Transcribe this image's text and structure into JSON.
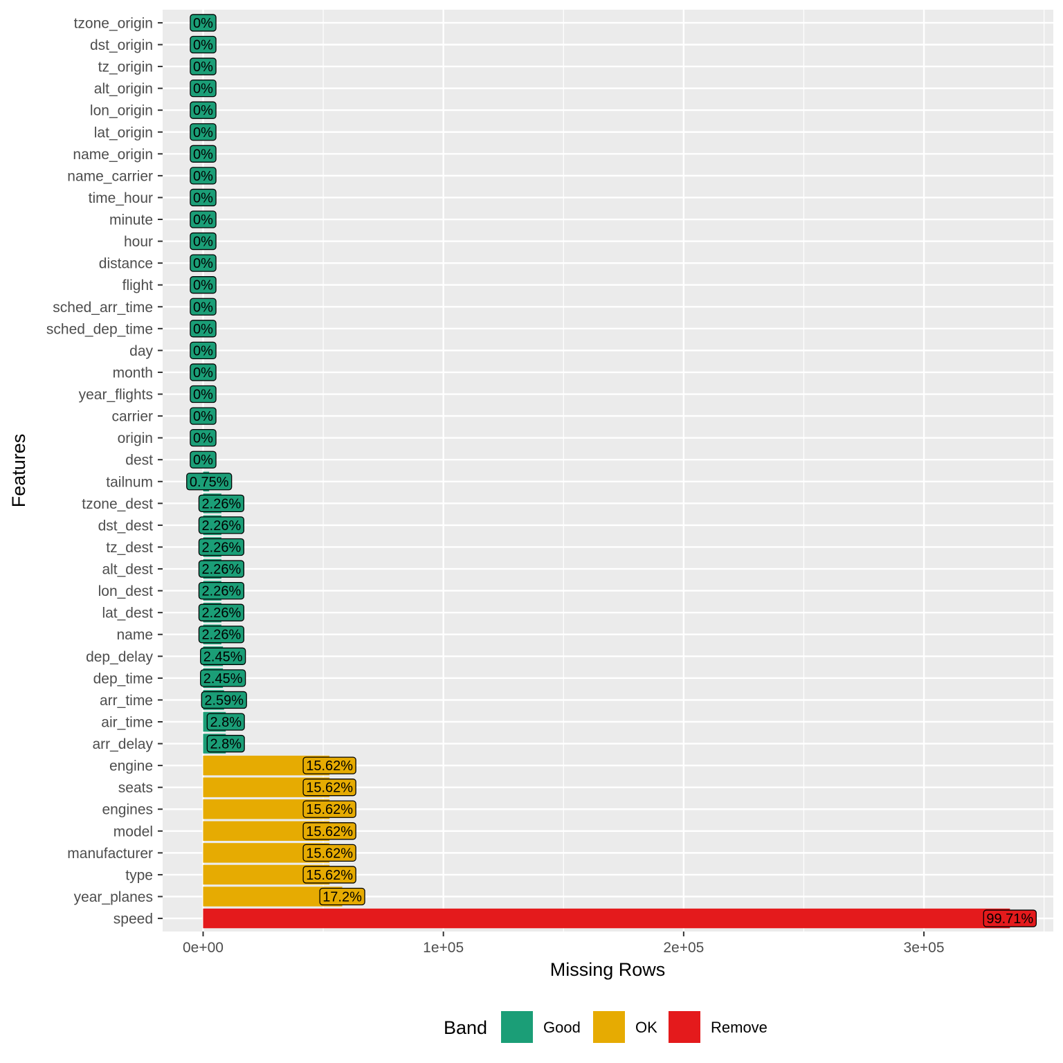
{
  "chart_data": {
    "type": "bar",
    "orientation": "horizontal",
    "xlabel": "Missing Rows",
    "ylabel": "Features",
    "xlim": [
      -16849,
      353850
    ],
    "x_ticks": [
      {
        "value": 0,
        "label": "0e+00"
      },
      {
        "value": 100000,
        "label": "1e+05"
      },
      {
        "value": 200000,
        "label": "2e+05"
      },
      {
        "value": 300000,
        "label": "3e+05"
      }
    ],
    "grid": true,
    "legend": {
      "title": "Band",
      "placement": "bottom",
      "entries": [
        {
          "key": "Good",
          "label": "Good",
          "color": "#1b9e77"
        },
        {
          "key": "OK",
          "label": "OK",
          "color": "#e6ab02"
        },
        {
          "key": "Remove",
          "label": "Remove",
          "color": "#e41a1c"
        }
      ]
    },
    "bars": [
      {
        "feature": "tzone_origin",
        "missing_rows": 0,
        "label": "0%",
        "band": "Good"
      },
      {
        "feature": "dst_origin",
        "missing_rows": 0,
        "label": "0%",
        "band": "Good"
      },
      {
        "feature": "tz_origin",
        "missing_rows": 0,
        "label": "0%",
        "band": "Good"
      },
      {
        "feature": "alt_origin",
        "missing_rows": 0,
        "label": "0%",
        "band": "Good"
      },
      {
        "feature": "lon_origin",
        "missing_rows": 0,
        "label": "0%",
        "band": "Good"
      },
      {
        "feature": "lat_origin",
        "missing_rows": 0,
        "label": "0%",
        "band": "Good"
      },
      {
        "feature": "name_origin",
        "missing_rows": 0,
        "label": "0%",
        "band": "Good"
      },
      {
        "feature": "name_carrier",
        "missing_rows": 0,
        "label": "0%",
        "band": "Good"
      },
      {
        "feature": "time_hour",
        "missing_rows": 0,
        "label": "0%",
        "band": "Good"
      },
      {
        "feature": "minute",
        "missing_rows": 0,
        "label": "0%",
        "band": "Good"
      },
      {
        "feature": "hour",
        "missing_rows": 0,
        "label": "0%",
        "band": "Good"
      },
      {
        "feature": "distance",
        "missing_rows": 0,
        "label": "0%",
        "band": "Good"
      },
      {
        "feature": "flight",
        "missing_rows": 0,
        "label": "0%",
        "band": "Good"
      },
      {
        "feature": "sched_arr_time",
        "missing_rows": 0,
        "label": "0%",
        "band": "Good"
      },
      {
        "feature": "sched_dep_time",
        "missing_rows": 0,
        "label": "0%",
        "band": "Good"
      },
      {
        "feature": "day",
        "missing_rows": 0,
        "label": "0%",
        "band": "Good"
      },
      {
        "feature": "month",
        "missing_rows": 0,
        "label": "0%",
        "band": "Good"
      },
      {
        "feature": "year_flights",
        "missing_rows": 0,
        "label": "0%",
        "band": "Good"
      },
      {
        "feature": "carrier",
        "missing_rows": 0,
        "label": "0%",
        "band": "Good"
      },
      {
        "feature": "origin",
        "missing_rows": 0,
        "label": "0%",
        "band": "Good"
      },
      {
        "feature": "dest",
        "missing_rows": 0,
        "label": "0%",
        "band": "Good"
      },
      {
        "feature": "tailnum",
        "missing_rows": 2512,
        "label": "0.75%",
        "band": "Good"
      },
      {
        "feature": "tzone_dest",
        "missing_rows": 7602,
        "label": "2.26%",
        "band": "Good"
      },
      {
        "feature": "dst_dest",
        "missing_rows": 7602,
        "label": "2.26%",
        "band": "Good"
      },
      {
        "feature": "tz_dest",
        "missing_rows": 7602,
        "label": "2.26%",
        "band": "Good"
      },
      {
        "feature": "alt_dest",
        "missing_rows": 7602,
        "label": "2.26%",
        "band": "Good"
      },
      {
        "feature": "lon_dest",
        "missing_rows": 7602,
        "label": "2.26%",
        "band": "Good"
      },
      {
        "feature": "lat_dest",
        "missing_rows": 7602,
        "label": "2.26%",
        "band": "Good"
      },
      {
        "feature": "name",
        "missing_rows": 7602,
        "label": "2.26%",
        "band": "Good"
      },
      {
        "feature": "dep_delay",
        "missing_rows": 8255,
        "label": "2.45%",
        "band": "Good"
      },
      {
        "feature": "dep_time",
        "missing_rows": 8255,
        "label": "2.45%",
        "band": "Good"
      },
      {
        "feature": "arr_time",
        "missing_rows": 8713,
        "label": "2.59%",
        "band": "Good"
      },
      {
        "feature": "air_time",
        "missing_rows": 9430,
        "label": "2.8%",
        "band": "Good"
      },
      {
        "feature": "arr_delay",
        "missing_rows": 9430,
        "label": "2.8%",
        "band": "Good"
      },
      {
        "feature": "engine",
        "missing_rows": 52606,
        "label": "15.62%",
        "band": "OK"
      },
      {
        "feature": "seats",
        "missing_rows": 52606,
        "label": "15.62%",
        "band": "OK"
      },
      {
        "feature": "engines",
        "missing_rows": 52606,
        "label": "15.62%",
        "band": "OK"
      },
      {
        "feature": "model",
        "missing_rows": 52606,
        "label": "15.62%",
        "band": "OK"
      },
      {
        "feature": "manufacturer",
        "missing_rows": 52606,
        "label": "15.62%",
        "band": "OK"
      },
      {
        "feature": "type",
        "missing_rows": 52606,
        "label": "15.62%",
        "band": "OK"
      },
      {
        "feature": "year_planes",
        "missing_rows": 57912,
        "label": "17.2%",
        "band": "OK"
      },
      {
        "feature": "speed",
        "missing_rows": 335793,
        "label": "99.71%",
        "band": "Remove"
      }
    ]
  }
}
